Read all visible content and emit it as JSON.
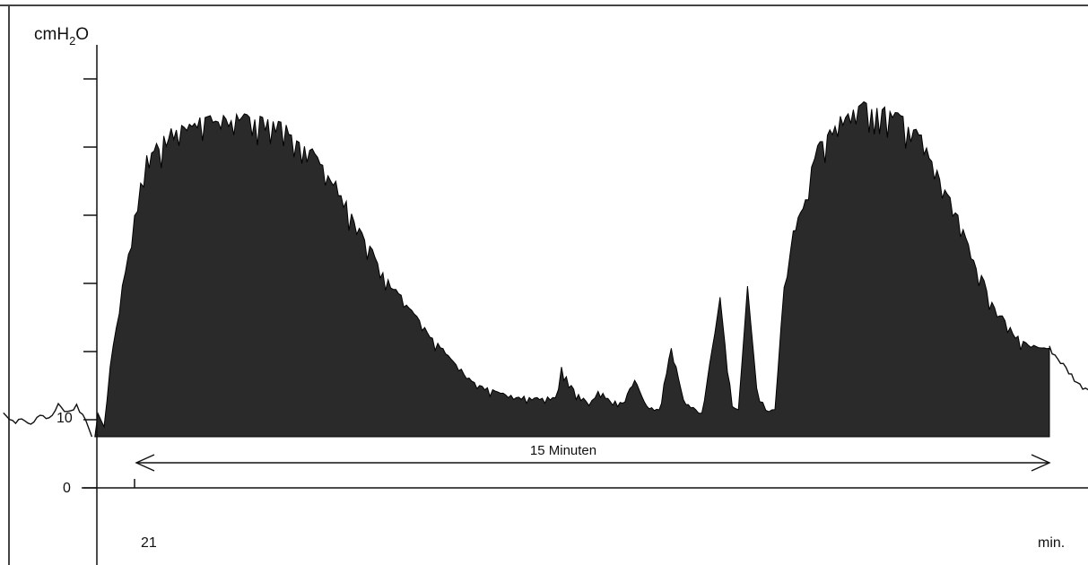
{
  "chart_data": {
    "type": "area",
    "title": "",
    "ylabel_parts": [
      "cm",
      "H",
      "2",
      "O"
    ],
    "xlabel": "min.",
    "x_start_label": "21",
    "y_ticks": [
      {
        "value": 0,
        "label": "0"
      },
      {
        "value": 10,
        "label": "10"
      },
      {
        "value": 20,
        "label": ""
      },
      {
        "value": 30,
        "label": ""
      },
      {
        "value": 40,
        "label": ""
      },
      {
        "value": 50,
        "label": ""
      },
      {
        "value": 60,
        "label": ""
      }
    ],
    "ylim": [
      0,
      65
    ],
    "xlim": [
      -2.15,
      18.5
    ],
    "interval": {
      "label": "15 Minuten",
      "from": 0,
      "to": 15
    },
    "grid": false,
    "series": [
      {
        "fill": "#2a2a2a",
        "x": [
          -0.65,
          -0.6,
          -0.5,
          -0.4,
          -0.3,
          -0.2,
          -0.1,
          0,
          0.1,
          0.2,
          0.4,
          0.6,
          0.9,
          1.2,
          1.5,
          1.8,
          2.1,
          2.4,
          2.7,
          3.0,
          3.3,
          3.6,
          3.9,
          4.2,
          4.5,
          4.8,
          5.1,
          5.4,
          5.7,
          6.0,
          6.3,
          6.6,
          6.9,
          7.0,
          7.2,
          7.4,
          7.5,
          7.6,
          7.8,
          8.0,
          8.2,
          8.4,
          8.6,
          8.8,
          9.0,
          9.2,
          9.3,
          9.6,
          9.8,
          9.9,
          10.05,
          10.2,
          10.35,
          10.5,
          10.65,
          10.8,
          11.0,
          11.1,
          11.2,
          11.4,
          11.7,
          12.0,
          12.3,
          12.6,
          12.9,
          13.2,
          13.5,
          13.8,
          14.1,
          14.4,
          14.7,
          15.0
        ],
        "y": [
          7.6,
          11,
          9,
          18,
          24,
          30,
          35,
          40,
          45,
          49,
          51,
          53,
          54,
          55,
          55,
          55,
          55,
          54,
          52,
          49,
          45,
          40,
          35,
          30,
          27,
          23,
          20,
          17,
          15,
          14,
          13.5,
          13.5,
          13.5,
          18,
          14.5,
          13,
          13,
          14.5,
          13,
          12.5,
          16,
          12,
          11.5,
          21,
          13,
          11.5,
          11,
          28,
          12,
          11.5,
          30,
          15,
          11.5,
          11.5,
          30,
          38,
          43,
          48,
          51,
          53,
          56,
          57,
          56,
          55,
          52,
          46,
          40,
          33,
          27,
          23,
          21,
          20.5
        ]
      },
      {
        "stroke": "#111111",
        "x": [
          -2.15,
          -2.0,
          -1.85,
          -1.7,
          -1.55,
          -1.4,
          -1.25,
          -1.1,
          -0.95,
          -0.8,
          -0.7
        ],
        "y": [
          11,
          9.5,
          10.5,
          9.5,
          11,
          10,
          12,
          11,
          12,
          10,
          7.5
        ]
      },
      {
        "stroke": "#111111",
        "x": [
          15.0,
          15.5,
          16.0,
          16.5,
          17.0,
          17.5,
          18.0,
          18.5
        ],
        "y": [
          20.5,
          15,
          13.5,
          13,
          12.5,
          12.5,
          12,
          12
        ]
      }
    ]
  }
}
